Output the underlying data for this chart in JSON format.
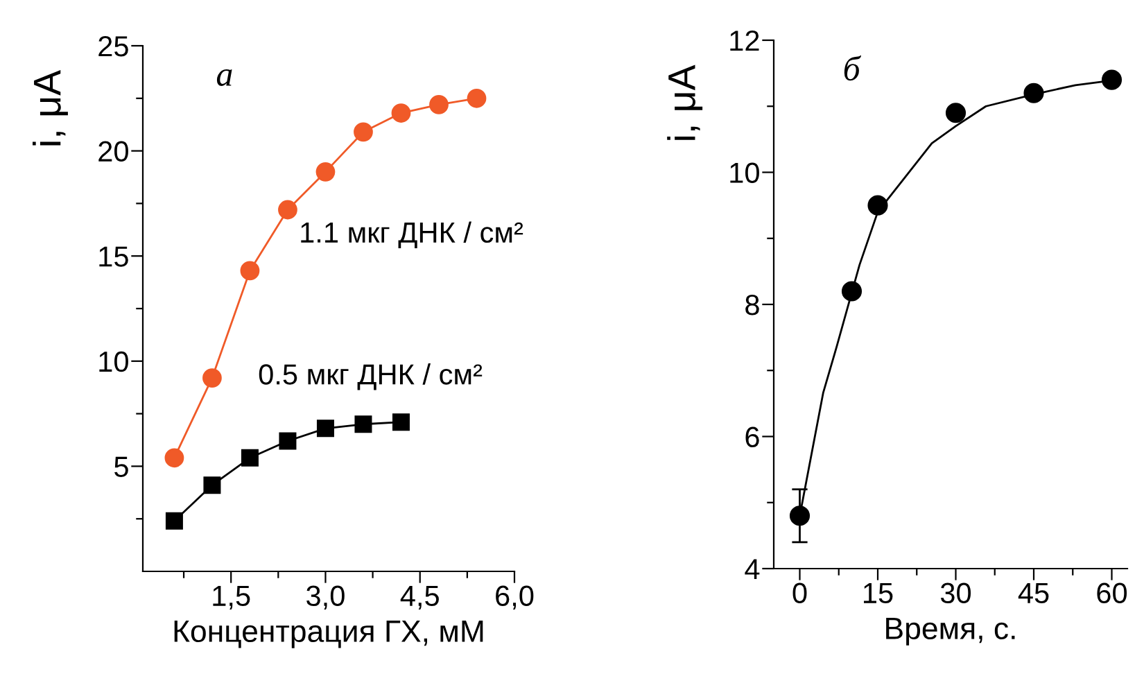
{
  "chart_data": [
    {
      "type": "line",
      "xlabel": "Концентрация ГХ, мМ",
      "ylabel": "i, μA",
      "annotations": [
        "а"
      ],
      "xlim": [
        0.1,
        6.0
      ],
      "xticks": [
        {
          "value": 0.75,
          "label": null
        },
        {
          "value": 1.5,
          "label": "1,5"
        },
        {
          "value": 2.25,
          "label": null
        },
        {
          "value": 3.0,
          "label": "3,0"
        },
        {
          "value": 3.75,
          "label": null
        },
        {
          "value": 4.5,
          "label": "4,5"
        },
        {
          "value": 5.25,
          "label": null
        },
        {
          "value": 6.0,
          "label": "6,0"
        }
      ],
      "ylim": [
        0,
        25
      ],
      "yticks": [
        {
          "value": 2.5,
          "label": null
        },
        5,
        {
          "value": 7.5,
          "label": null
        },
        10,
        {
          "value": 12.5,
          "label": null
        },
        15,
        {
          "value": 17.5,
          "label": null
        },
        20,
        {
          "value": 22.5,
          "label": null
        },
        25
      ],
      "grid": false,
      "legend": false,
      "series": [
        {
          "name": "1.1 мкг ДНК / см²",
          "color": "#f05a28",
          "marker": "circle",
          "x": [
            0.6,
            1.2,
            1.8,
            2.4,
            3.0,
            3.6,
            4.2,
            4.8,
            5.4
          ],
          "values": [
            5.4,
            9.2,
            14.3,
            17.2,
            19.0,
            20.9,
            21.8,
            22.2,
            22.5
          ]
        },
        {
          "name": "0.5 мкг ДНК / см²",
          "color": "#000000",
          "marker": "square",
          "x": [
            0.6,
            1.2,
            1.8,
            2.4,
            3.0,
            3.6,
            4.2
          ],
          "values": [
            2.4,
            4.1,
            5.4,
            6.2,
            6.8,
            7.0,
            7.1
          ]
        }
      ]
    },
    {
      "type": "scatter",
      "xlabel": "Время, с.",
      "ylabel": "i, μA",
      "annotations": [
        "б"
      ],
      "xlim": [
        -5,
        63
      ],
      "xticks": [
        0,
        {
          "value": 7.5,
          "label": null
        },
        15,
        {
          "value": 22.5,
          "label": null
        },
        30,
        {
          "value": 37.5,
          "label": null
        },
        45,
        {
          "value": 52.5,
          "label": null
        },
        60
      ],
      "ylim": [
        4,
        12
      ],
      "yticks": [
        4,
        {
          "value": 5,
          "label": null
        },
        6,
        {
          "value": 7,
          "label": null
        },
        8,
        {
          "value": 9,
          "label": null
        },
        10,
        {
          "value": 11,
          "label": null
        },
        12
      ],
      "grid": false,
      "legend": false,
      "series": [
        {
          "type": "line",
          "color": "#000000",
          "marker": "none",
          "x": [
            0,
            4.5,
            7.1,
            11.5,
            15,
            20.2,
            25.4,
            30,
            35.8,
            45,
            53,
            60
          ],
          "values": [
            4.8,
            6.66,
            7.36,
            8.6,
            9.4,
            9.92,
            10.44,
            10.7,
            11.0,
            11.18,
            11.32,
            11.39
          ]
        },
        {
          "type": "scatter",
          "color": "#000000",
          "marker": "circle",
          "x": [
            0,
            10,
            15,
            30,
            45,
            60
          ],
          "values": [
            4.8,
            8.2,
            9.5,
            10.9,
            11.2,
            11.4
          ],
          "errors": [
            0.4,
            null,
            null,
            null,
            null,
            null
          ]
        }
      ]
    }
  ]
}
